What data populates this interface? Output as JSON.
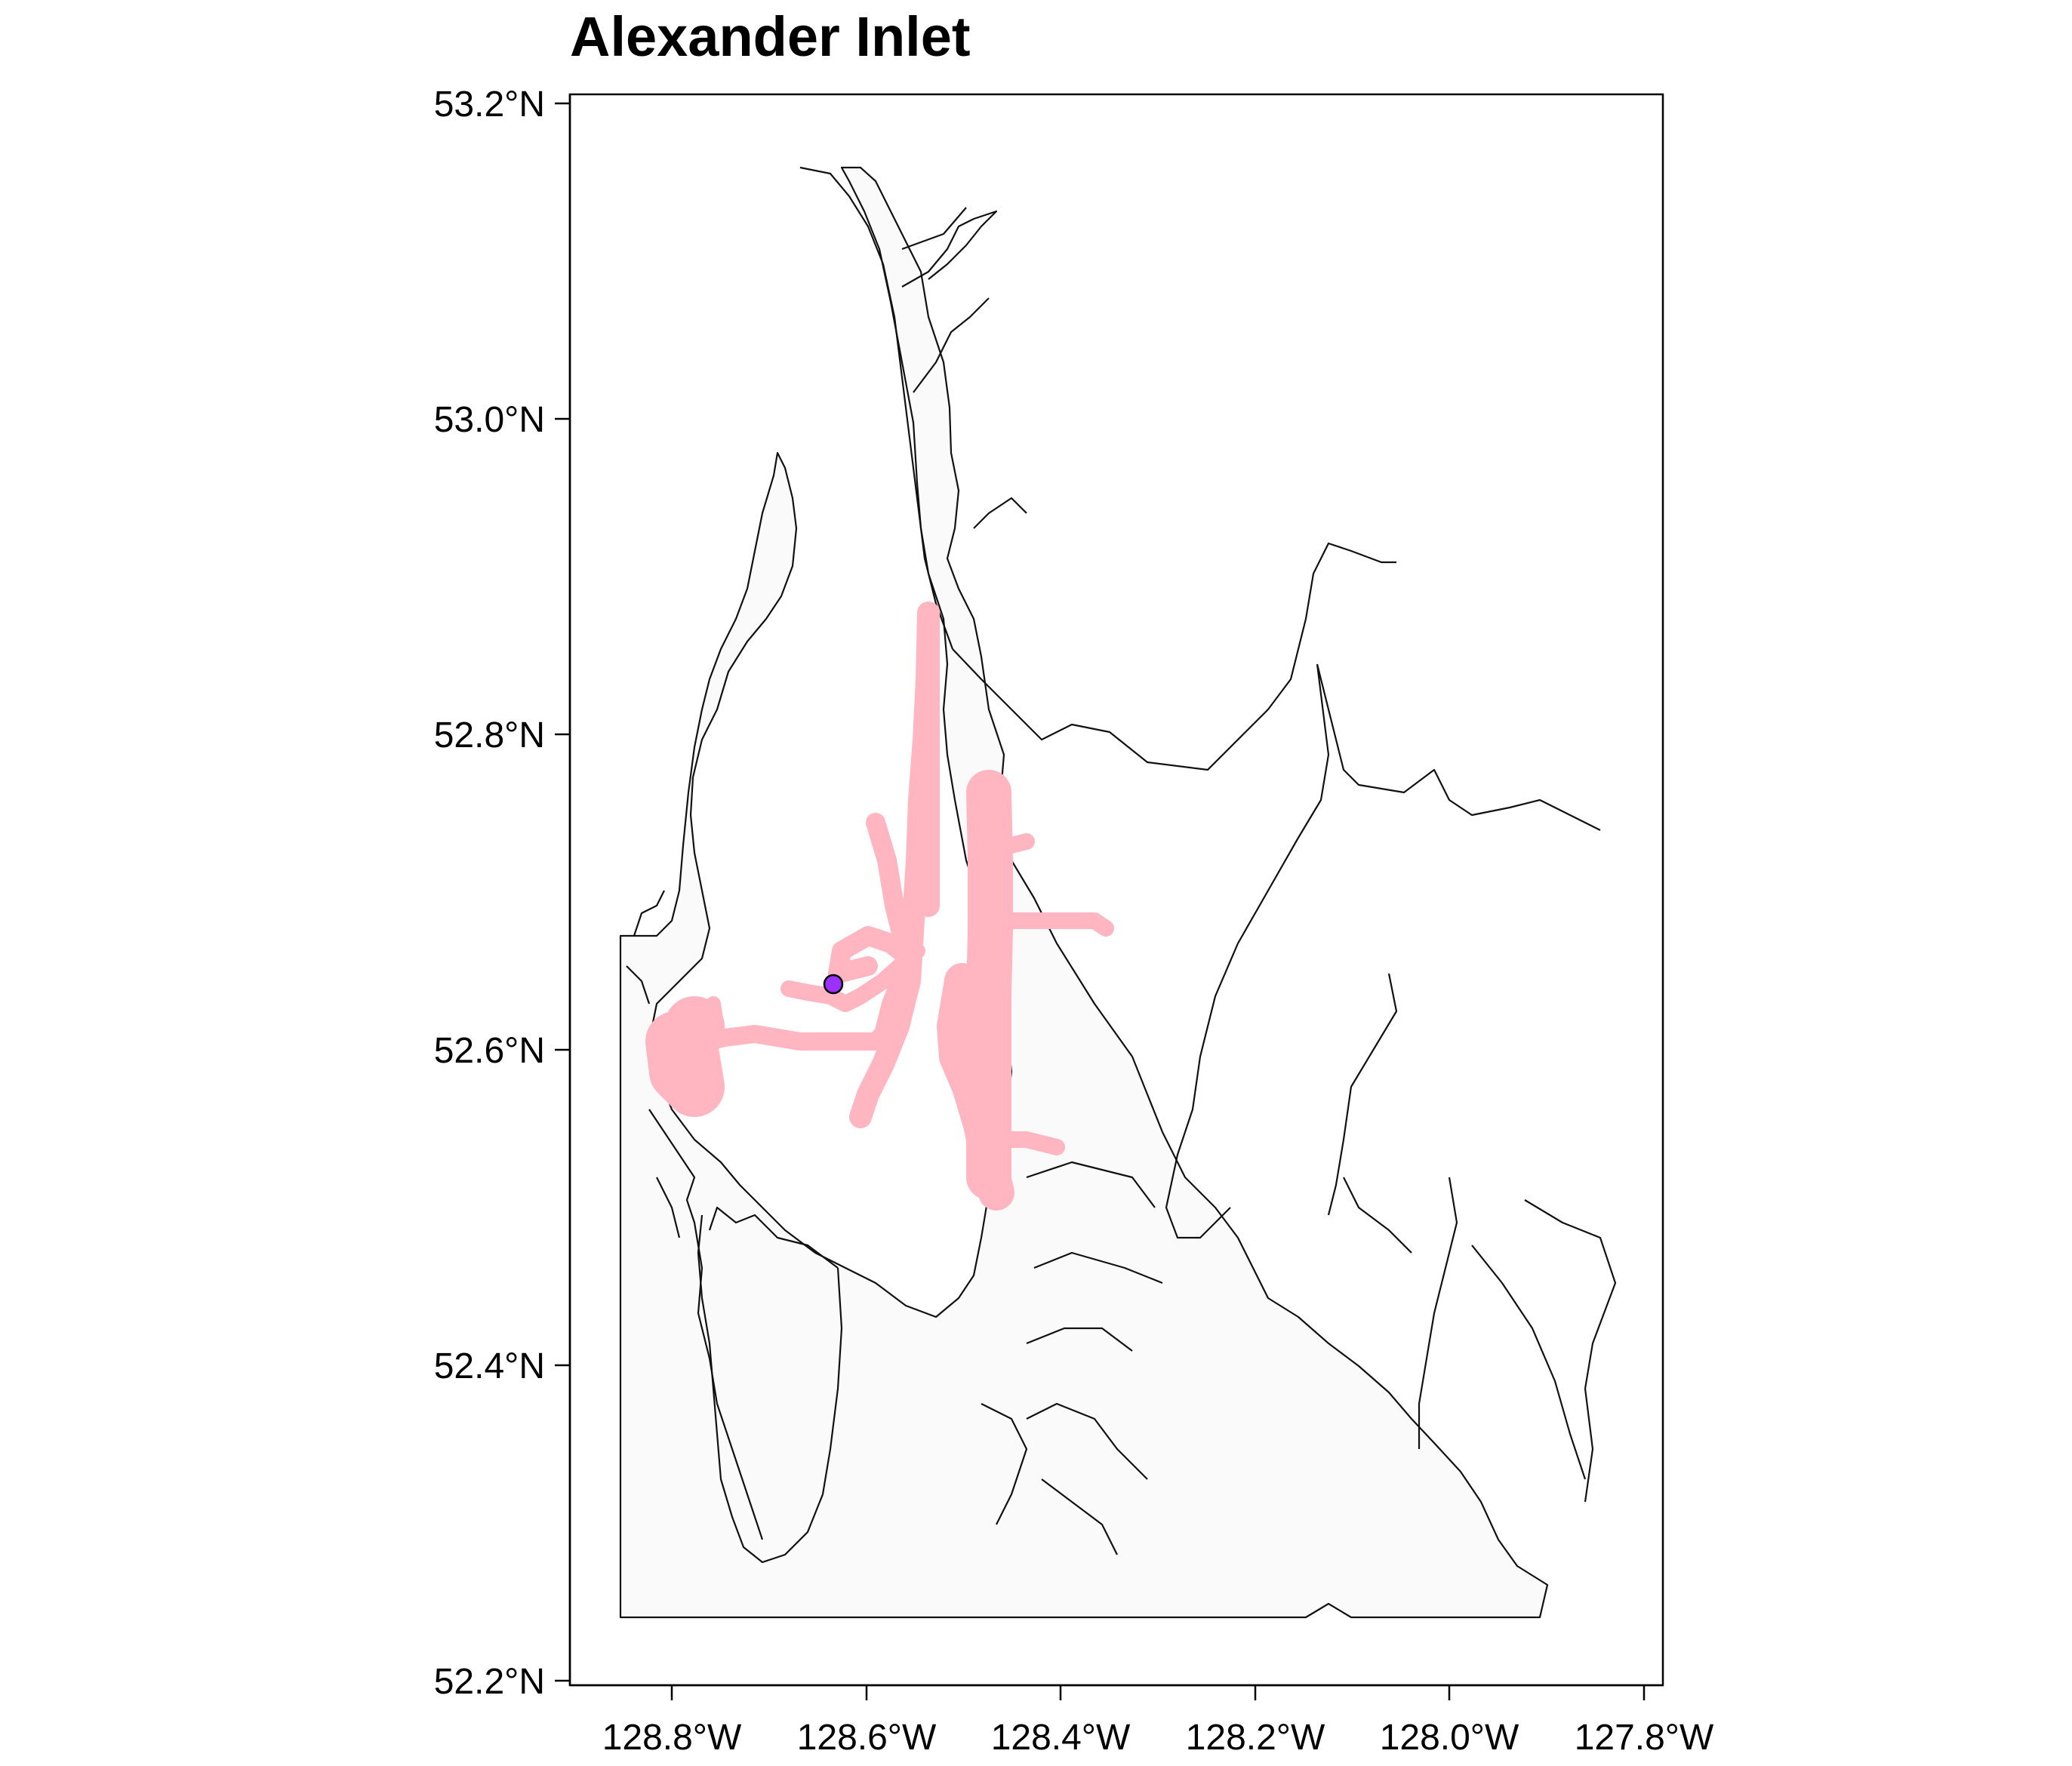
{
  "map": {
    "title": "Alexander Inlet",
    "lat_ticks": [
      "53.2°N",
      "53.0°N",
      "52.8°N",
      "52.6°N",
      "52.4°N",
      "52.2°N"
    ],
    "lon_ticks": [
      "128.8°W",
      "128.6°W",
      "128.4°W",
      "128.2°W",
      "128.0°W",
      "127.8°W"
    ],
    "colors": {
      "track": "#ffb6c1",
      "point": "#9b30ff",
      "water": "#fafafa",
      "coastline": "#111111"
    },
    "marker_icon": "location-point-icon"
  }
}
